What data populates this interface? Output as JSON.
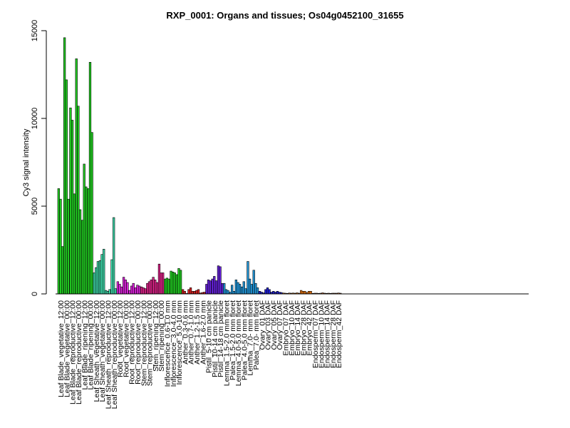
{
  "chart_data": {
    "type": "bar",
    "title": "RXP_0001: Organs and tissues; Os04g0452100_31655",
    "xlabel": "",
    "ylabel": "Cy3 signal intensity",
    "ylim": [
      0,
      15000
    ],
    "yticks": [
      0,
      5000,
      10000,
      15000
    ],
    "grid": false,
    "groups": [
      {
        "label": "Leaf Blade_vegetative_12:00",
        "color": "#22cc22",
        "values": [
          6000,
          5400,
          2700
        ]
      },
      {
        "label": "Leaf Blade_vegetative_00:00",
        "color": "#22cc22",
        "values": [
          14600,
          12200,
          5400
        ]
      },
      {
        "label": "Leaf Blade_reproductive_12:00",
        "color": "#22cc22",
        "values": [
          10600,
          9900,
          5700
        ]
      },
      {
        "label": "Leaf Blade_reproductive_00:00",
        "color": "#22cc22",
        "values": [
          13400,
          10700,
          4800
        ]
      },
      {
        "label": "Leaf Blade_ripening_12:00",
        "color": "#22cc22",
        "values": [
          4200,
          7400,
          6100
        ]
      },
      {
        "label": "Leaf Blade_ripening_00:00",
        "color": "#22cc22",
        "values": [
          6000,
          13200,
          9200
        ]
      },
      {
        "label": "Leaf Sheath_vegetative_12:00",
        "color": "#3ed6a8",
        "values": [
          1200,
          1500,
          1850
        ]
      },
      {
        "label": "Leaf Sheath_vegetative_00:00",
        "color": "#3ed6a8",
        "values": [
          1900,
          2250,
          2550
        ]
      },
      {
        "label": "Leaf Sheath_reproductive_12:00",
        "color": "#3ed6a8",
        "values": [
          200,
          150,
          250
        ]
      },
      {
        "label": "Leaf Sheath_reproductive_00:00",
        "color": "#3ed6a8",
        "values": [
          1950,
          4350,
          300
        ]
      },
      {
        "label": "Root_vegetative_12:00",
        "color": "#dd22dd",
        "values": [
          700,
          550,
          400
        ]
      },
      {
        "label": "Root_vegetative_00:00",
        "color": "#dd22dd",
        "values": [
          950,
          800,
          650
        ]
      },
      {
        "label": "Root_reproductive_12:00",
        "color": "#dd22dd",
        "values": [
          200,
          450,
          600
        ]
      },
      {
        "label": "Root_reproductive_00:00",
        "color": "#dd22dd",
        "values": [
          350,
          500,
          450
        ]
      },
      {
        "label": "Stem_reproductive_12:00",
        "color": "#dd2288",
        "values": [
          400,
          350,
          300
        ]
      },
      {
        "label": "Stem_reproductive_00:00",
        "color": "#dd2288",
        "values": [
          600,
          700,
          800
        ]
      },
      {
        "label": "Stem_ripening_12:00",
        "color": "#dd2288",
        "values": [
          950,
          800,
          650
        ]
      },
      {
        "label": "Stem_ripening_00:00",
        "color": "#dd2288",
        "values": [
          1700,
          1200,
          1200
        ]
      },
      {
        "label": "Inflorescence_0.6-1.0 mm",
        "color": "#22cc22",
        "values": [
          850,
          900,
          850
        ]
      },
      {
        "label": "Inflorescence_3.0-4.0 mm",
        "color": "#22cc22",
        "values": [
          1300,
          1250,
          1200
        ]
      },
      {
        "label": "Inflorescence_5.0-10 mm",
        "color": "#22cc22",
        "values": [
          1100,
          1450,
          1350
        ]
      },
      {
        "label": "Anther_0.3-0.6 mm",
        "color": "#dd2222",
        "values": [
          250,
          150,
          0
        ]
      },
      {
        "label": "Anther_0.7-1.0 mm",
        "color": "#dd2222",
        "values": [
          250,
          350,
          150
        ]
      },
      {
        "label": "Anther_1.2-1.5 mm",
        "color": "#dd2222",
        "values": [
          150,
          200,
          250
        ]
      },
      {
        "label": "Anther_1.6-2.0 mm",
        "color": "#dd2222",
        "values": [
          50,
          80,
          100
        ]
      },
      {
        "label": "Pistil_5-10 cm panicle",
        "color": "#6622dd",
        "values": [
          550,
          800,
          750
        ]
      },
      {
        "label": "Pistil_10-14 cm panicle",
        "color": "#6622dd",
        "values": [
          850,
          1000,
          750
        ]
      },
      {
        "label": "Pistil_14-18 cm panicle",
        "color": "#6622dd",
        "values": [
          1600,
          1550,
          600
        ]
      },
      {
        "label": "Lemma_1.5-2.0 mm floret",
        "color": "#2299dd",
        "values": [
          600,
          250,
          200
        ]
      },
      {
        "label": "Palea_1.5-2.0 mm floret",
        "color": "#2299dd",
        "values": [
          100,
          500,
          150
        ]
      },
      {
        "label": "Lemma_4.0-5.0 mm floret",
        "color": "#2299dd",
        "values": [
          800,
          650,
          550
        ]
      },
      {
        "label": "Palea_4.0-5.0 mm floret",
        "color": "#2299dd",
        "values": [
          400,
          700,
          300
        ]
      },
      {
        "label": "Lemma_7.0- mm floret",
        "color": "#2299dd",
        "values": [
          1850,
          850,
          550
        ]
      },
      {
        "label": "Palea_7.0- mm floret",
        "color": "#2299dd",
        "values": [
          1350,
          600,
          350
        ]
      },
      {
        "label": "Ovary_01 DAF",
        "color": "#2222dd",
        "values": [
          150,
          100,
          60
        ]
      },
      {
        "label": "Ovary_03 DAF",
        "color": "#2222dd",
        "values": [
          250,
          350,
          250
        ]
      },
      {
        "label": "Ovary_05 DAF",
        "color": "#2222dd",
        "values": [
          100,
          150,
          100
        ]
      },
      {
        "label": "Ovary_07 DAF",
        "color": "#2222dd",
        "values": [
          150,
          100,
          80
        ]
      },
      {
        "label": "Embryo_07 DAF",
        "color": "#ee7711",
        "values": [
          50,
          40,
          30
        ]
      },
      {
        "label": "Embryo_10 DAF",
        "color": "#ee7711",
        "values": [
          50,
          40,
          50
        ]
      },
      {
        "label": "Embryo_14 DAF",
        "color": "#ee7711",
        "values": [
          40,
          60,
          40
        ]
      },
      {
        "label": "Embryo_28 DAF",
        "color": "#ee7711",
        "values": [
          200,
          150,
          150
        ]
      },
      {
        "label": "Embryo_42 DAF",
        "color": "#ee7711",
        "values": [
          80,
          150,
          150
        ]
      },
      {
        "label": "Endosperm_07 DAF",
        "color": "#dd6622",
        "values": [
          30,
          40,
          40
        ]
      },
      {
        "label": "Endosperm_10 DAF",
        "color": "#dd6622",
        "values": [
          30,
          40,
          60
        ]
      },
      {
        "label": "Endosperm_14 DAF",
        "color": "#dd6622",
        "values": [
          40,
          30,
          40
        ]
      },
      {
        "label": "Endosperm_28 DAF",
        "color": "#dd6622",
        "values": [
          30,
          40,
          40
        ]
      },
      {
        "label": "Endosperm_42 DAF",
        "color": "#dd6622",
        "values": [
          40,
          50,
          40
        ]
      }
    ]
  }
}
